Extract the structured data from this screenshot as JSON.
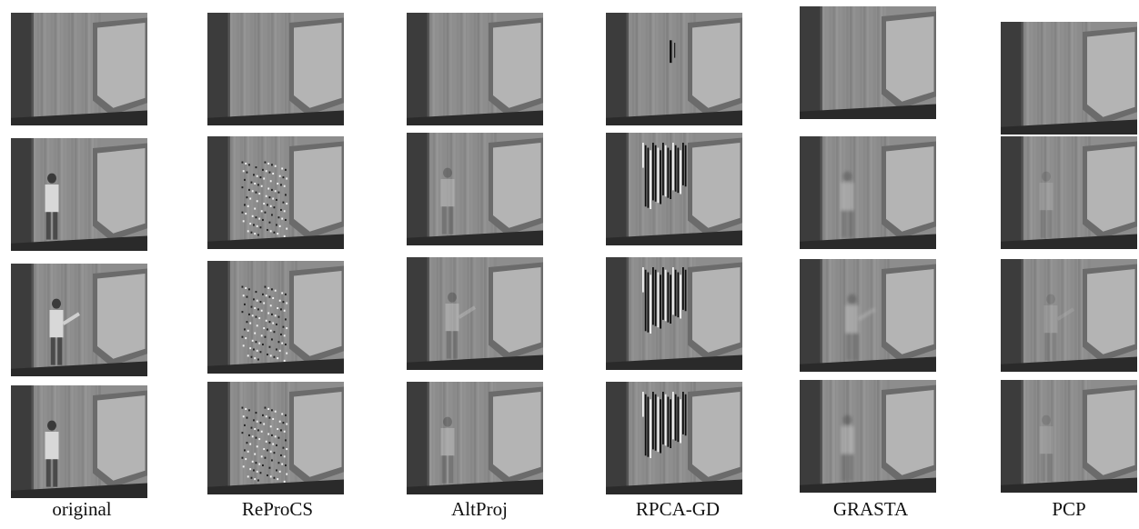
{
  "columns": [
    {
      "label": "original",
      "artifact": "person"
    },
    {
      "label": "ReProCS",
      "artifact": "speckle"
    },
    {
      "label": "AltProj",
      "artifact": "ghost"
    },
    {
      "label": "RPCA-GD",
      "artifact": "streaks"
    },
    {
      "label": "GRASTA",
      "artifact": "blur-ghost"
    },
    {
      "label": "PCP",
      "artifact": "faint-ghost"
    }
  ],
  "rows": [
    {
      "scene": "empty-room"
    },
    {
      "scene": "person-standing"
    },
    {
      "scene": "person-pointing"
    },
    {
      "scene": "person-near-door"
    }
  ],
  "colors": {
    "wall": "#8d8d8d",
    "door": "#3c3c3c",
    "board": "#b4b4b4",
    "desk": "#2a2a2a"
  }
}
